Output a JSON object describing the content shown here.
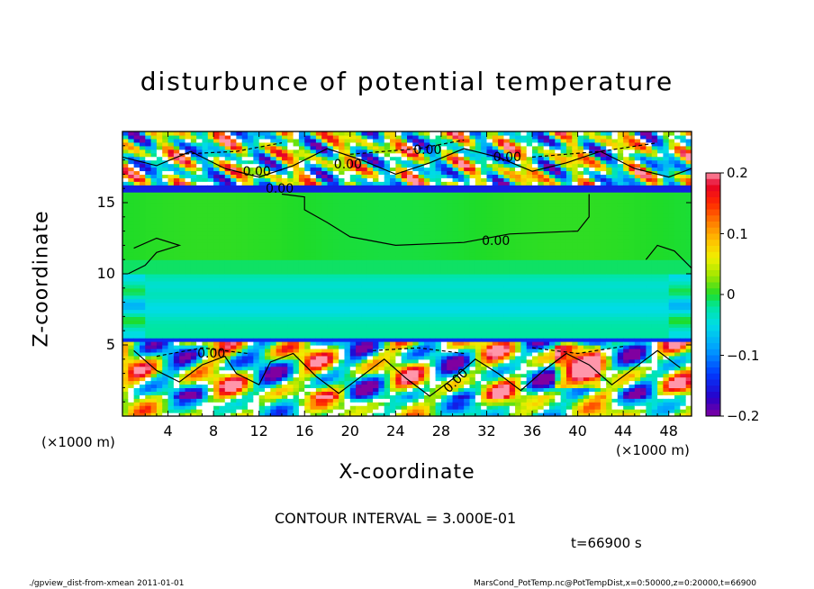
{
  "chart_data": {
    "type": "heatmap",
    "title": "disturbunce of potential temperature",
    "xlabel": "X-coordinate",
    "ylabel": "Z-coordinate",
    "x_unit": "(×1000 m)",
    "y_unit": "(×1000 m)",
    "xlim": [
      0,
      50
    ],
    "ylim": [
      0,
      20
    ],
    "x_ticks": [
      "4",
      "8",
      "12",
      "16",
      "20",
      "24",
      "28",
      "32",
      "36",
      "40",
      "44",
      "48"
    ],
    "y_ticks": [
      "5",
      "10",
      "15"
    ],
    "colorbar": {
      "ticks": [
        "0.2",
        "0.1",
        "0",
        "−0.1",
        "−0.2"
      ],
      "range": [
        -0.2,
        0.2
      ]
    },
    "contour_labels": [
      "0.00",
      "0.00",
      "0.00",
      "0.00",
      "0.00",
      "0.00",
      "0.00",
      "0.00"
    ],
    "contour_interval": "CONTOUR INTERVAL = 3.000E-01",
    "time": "t=66900 s",
    "footer_left": "./gpview_dist-from-xmean   2011-01-01",
    "footer_right": "MarsCond_PotTemp.nc@PotTempDist,x=0:50000,z=0:20000,t=66900"
  }
}
